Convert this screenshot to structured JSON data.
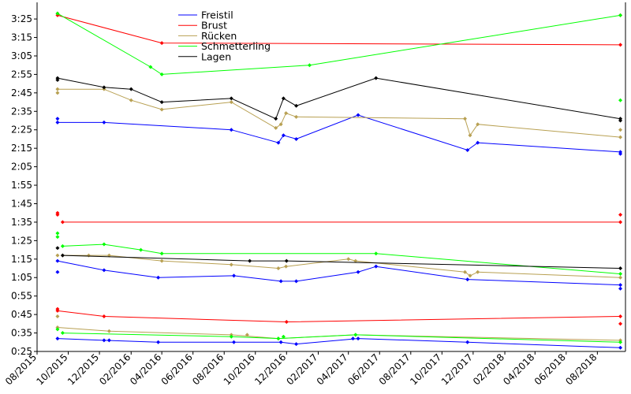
{
  "chart_data": {
    "type": "line",
    "title": "",
    "xlabel": "",
    "ylabel": "",
    "grid": false,
    "legend_placement": "top-center",
    "x_domain": [
      "2015-08-01",
      "2018-09-25"
    ],
    "y_domain_seconds": [
      25,
      214
    ],
    "y_ticks": [
      "0:25",
      "0:35",
      "0:45",
      "0:55",
      "1:05",
      "1:15",
      "1:25",
      "1:35",
      "1:45",
      "1:55",
      "2:05",
      "2:15",
      "2:25",
      "2:35",
      "2:45",
      "2:55",
      "3:05",
      "3:15",
      "3:25"
    ],
    "x_ticks": [
      "08/2015",
      "10/2015",
      "12/2015",
      "02/2016",
      "04/2016",
      "06/2016",
      "08/2016",
      "10/2016",
      "12/2016",
      "02/2017",
      "04/2017",
      "06/2017",
      "08/2017",
      "10/2017",
      "12/2017",
      "02/2018",
      "04/2018",
      "06/2018",
      "08/2018"
    ],
    "series": [
      {
        "name": "Freistil",
        "color": "#0000ff",
        "groups": [
          {
            "points": [
              [
                "2015-09-10",
                "2:29"
              ],
              [
                "2015-12-10",
                "2:29"
              ],
              [
                "2016-08-15",
                "2:25"
              ],
              [
                "2016-11-15",
                "2:18"
              ],
              [
                "2016-11-25",
                "2:22"
              ],
              [
                "2016-12-20",
                "2:20"
              ],
              [
                "2017-04-20",
                "2:33"
              ],
              [
                "2017-11-20",
                "2:14"
              ],
              [
                "2017-12-10",
                "2:18"
              ],
              [
                "2018-09-15",
                "2:13"
              ]
            ],
            "extras": [
              [
                "2015-09-10",
                "2:31"
              ],
              [
                "2018-09-15",
                "2:12"
              ]
            ]
          },
          {
            "points": [
              [
                "2015-09-10",
                "1:14"
              ],
              [
                "2015-12-10",
                "1:09"
              ],
              [
                "2016-03-25",
                "1:05"
              ],
              [
                "2016-08-20",
                "1:06"
              ],
              [
                "2016-11-20",
                "1:03"
              ],
              [
                "2016-12-20",
                "1:03"
              ],
              [
                "2017-04-20",
                "1:08"
              ],
              [
                "2017-05-25",
                "1:11"
              ],
              [
                "2017-11-20",
                "1:04"
              ],
              [
                "2018-09-15",
                "1:01"
              ]
            ],
            "extras": [
              [
                "2015-09-10",
                "1:08"
              ],
              [
                "2018-09-15",
                "0:59"
              ]
            ]
          },
          {
            "points": [
              [
                "2015-09-10",
                "0:32"
              ],
              [
                "2015-12-10",
                "0:31"
              ],
              [
                "2016-03-25",
                "0:30"
              ],
              [
                "2016-08-20",
                "0:30"
              ],
              [
                "2016-11-20",
                "0:30"
              ],
              [
                "2016-12-20",
                "0:29"
              ],
              [
                "2017-04-20",
                "0:32"
              ],
              [
                "2017-11-20",
                "0:30"
              ],
              [
                "2018-09-15",
                "0:27"
              ]
            ],
            "extras": [
              [
                "2015-12-20",
                "0:31"
              ],
              [
                "2017-04-10",
                "0:32"
              ]
            ]
          }
        ]
      },
      {
        "name": "Brust",
        "color": "#ff0000",
        "groups": [
          {
            "points": [
              [
                "2015-09-10",
                "3:27"
              ],
              [
                "2016-04-01",
                "3:12"
              ],
              [
                "2018-09-15",
                "3:11"
              ]
            ],
            "extras": [
              [
                "2015-09-10",
                "3:28"
              ],
              [
                "2018-09-15",
                "3:27"
              ]
            ]
          },
          {
            "points": [
              [
                "2015-09-20",
                "1:35"
              ],
              [
                "2018-09-15",
                "1:35"
              ]
            ],
            "extras": [
              [
                "2015-09-10",
                "1:40"
              ],
              [
                "2015-09-10",
                "1:39"
              ],
              [
                "2018-09-15",
                "1:39"
              ]
            ]
          },
          {
            "points": [
              [
                "2015-09-10",
                "0:47"
              ],
              [
                "2015-12-10",
                "0:44"
              ],
              [
                "2016-12-01",
                "0:41"
              ],
              [
                "2018-09-15",
                "0:44"
              ]
            ],
            "extras": [
              [
                "2015-09-10",
                "0:48"
              ],
              [
                "2018-09-15",
                "0:40"
              ]
            ]
          }
        ]
      },
      {
        "name": "Rücken",
        "color": "#b8a052",
        "groups": [
          {
            "points": [
              [
                "2015-09-10",
                "2:47"
              ],
              [
                "2015-12-10",
                "2:47"
              ],
              [
                "2016-02-01",
                "2:41"
              ],
              [
                "2016-04-01",
                "2:36"
              ],
              [
                "2016-08-15",
                "2:40"
              ],
              [
                "2016-11-10",
                "2:26"
              ],
              [
                "2016-11-20",
                "2:28"
              ],
              [
                "2016-11-30",
                "2:34"
              ],
              [
                "2016-12-20",
                "2:32"
              ],
              [
                "2017-11-15",
                "2:31"
              ],
              [
                "2017-11-25",
                "2:22"
              ],
              [
                "2017-12-10",
                "2:28"
              ],
              [
                "2018-09-15",
                "2:21"
              ]
            ],
            "extras": [
              [
                "2015-09-10",
                "2:45"
              ],
              [
                "2018-09-15",
                "2:25"
              ]
            ]
          },
          {
            "points": [
              [
                "2015-09-20",
                "1:17"
              ],
              [
                "2015-12-20",
                "1:17"
              ],
              [
                "2016-04-01",
                "1:14"
              ],
              [
                "2016-08-15",
                "1:12"
              ],
              [
                "2016-11-15",
                "1:10"
              ],
              [
                "2016-11-30",
                "1:11"
              ],
              [
                "2017-04-01",
                "1:15"
              ],
              [
                "2017-04-15",
                "1:14"
              ],
              [
                "2017-11-15",
                "1:08"
              ],
              [
                "2017-11-25",
                "1:06"
              ],
              [
                "2017-12-10",
                "1:08"
              ],
              [
                "2018-09-15",
                "1:05"
              ]
            ],
            "extras": [
              [
                "2015-09-10",
                "1:17"
              ],
              [
                "2015-11-10",
                "1:17"
              ]
            ]
          },
          {
            "points": [
              [
                "2015-09-10",
                "0:38"
              ],
              [
                "2015-12-20",
                "0:36"
              ],
              [
                "2016-08-15",
                "0:34"
              ],
              [
                "2016-11-15",
                "0:32"
              ],
              [
                "2017-04-15",
                "0:34"
              ],
              [
                "2018-09-15",
                "0:31"
              ]
            ],
            "extras": [
              [
                "2015-09-10",
                "0:44"
              ],
              [
                "2016-09-15",
                "0:34"
              ]
            ]
          }
        ]
      },
      {
        "name": "Schmetterling",
        "color": "#00ff00",
        "groups": [
          {
            "points": [
              [
                "2015-09-10",
                "3:28"
              ],
              [
                "2016-03-10",
                "2:59"
              ],
              [
                "2016-04-01",
                "2:55"
              ],
              [
                "2017-01-15",
                "3:00"
              ],
              [
                "2018-09-15",
                "3:27"
              ]
            ],
            "extras": [
              [
                "2018-09-15",
                "2:41"
              ]
            ]
          },
          {
            "points": [
              [
                "2015-09-20",
                "1:22"
              ],
              [
                "2015-12-10",
                "1:23"
              ],
              [
                "2016-02-20",
                "1:20"
              ],
              [
                "2016-04-01",
                "1:18"
              ],
              [
                "2017-05-25",
                "1:18"
              ],
              [
                "2018-09-15",
                "1:07"
              ]
            ],
            "extras": [
              [
                "2015-09-10",
                "1:29"
              ],
              [
                "2015-09-10",
                "1:27"
              ]
            ]
          },
          {
            "points": [
              [
                "2015-09-20",
                "0:35"
              ],
              [
                "2016-08-15",
                "0:33"
              ],
              [
                "2016-11-15",
                "0:32"
              ],
              [
                "2017-04-15",
                "0:34"
              ],
              [
                "2018-09-15",
                "0:30"
              ]
            ],
            "extras": [
              [
                "2015-09-10",
                "0:37"
              ],
              [
                "2016-11-25",
                "0:33"
              ]
            ]
          }
        ]
      },
      {
        "name": "Lagen",
        "color": "#000000",
        "groups": [
          {
            "points": [
              [
                "2015-09-10",
                "2:53"
              ],
              [
                "2015-12-10",
                "2:48"
              ],
              [
                "2016-02-01",
                "2:47"
              ],
              [
                "2016-04-01",
                "2:40"
              ],
              [
                "2016-08-15",
                "2:42"
              ],
              [
                "2016-11-10",
                "2:31"
              ],
              [
                "2016-11-25",
                "2:42"
              ],
              [
                "2016-12-20",
                "2:38"
              ],
              [
                "2017-05-25",
                "2:53"
              ],
              [
                "2018-09-15",
                "2:31"
              ]
            ],
            "extras": [
              [
                "2015-09-10",
                "2:52"
              ],
              [
                "2018-09-15",
                "2:30"
              ]
            ]
          },
          {
            "points": [
              [
                "2015-09-20",
                "1:17"
              ],
              [
                "2016-09-20",
                "1:14"
              ],
              [
                "2016-12-01",
                "1:14"
              ],
              [
                "2018-09-15",
                "1:10"
              ]
            ],
            "extras": [
              [
                "2015-09-10",
                "1:21"
              ]
            ]
          }
        ]
      }
    ]
  }
}
